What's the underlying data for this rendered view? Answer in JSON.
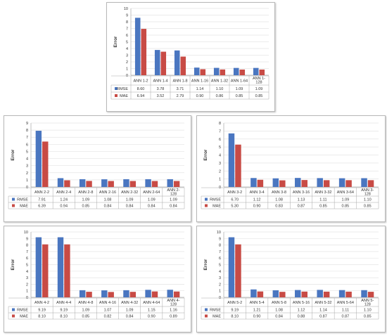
{
  "figure_type": "grouped bar charts with data tables",
  "colors": {
    "rmse": "#4a76c0",
    "mae": "#c84b45",
    "grid": "#e4e4e4",
    "axis": "#a8a8a8",
    "panel_border": "#b8b8b8"
  },
  "chart_data": [
    {
      "type": "bar",
      "ylabel": "Error",
      "ylim": [
        0,
        10
      ],
      "yticks": [
        "0",
        "1",
        "2",
        "3",
        "4",
        "5",
        "6",
        "7",
        "8",
        "9",
        "10"
      ],
      "categories": [
        "ANN 1-2",
        "ANN 1-4",
        "ANN 1-8",
        "ANN 1-16",
        "ANN 1-32",
        "ANN 1-64",
        "ANN 1-128"
      ],
      "category_lines": [
        [
          "ANN 1-2"
        ],
        [
          "ANN 1-4"
        ],
        [
          "ANN 1-8"
        ],
        [
          "ANN 1-16"
        ],
        [
          "ANN 1-32"
        ],
        [
          "ANN 1-64"
        ],
        [
          "ANN 1-",
          "128"
        ]
      ],
      "series": [
        {
          "name": "RMSE",
          "values": [
            8.6,
            3.78,
            3.71,
            1.14,
            1.1,
            1.09,
            1.09
          ],
          "labels": [
            "8.60",
            "3.78",
            "3.71",
            "1.14",
            "1.10",
            "1.09",
            "1.09"
          ]
        },
        {
          "name": "MAE",
          "values": [
            6.94,
            3.52,
            2.79,
            0.9,
            0.86,
            0.85,
            0.85
          ],
          "labels": [
            "6.94",
            "3.52",
            "2.79",
            "0.90",
            "0.86",
            "0.85",
            "0.85"
          ]
        }
      ],
      "legend": "data table below chart",
      "grid": true
    },
    {
      "type": "bar",
      "ylabel": "Error",
      "ylim": [
        0,
        9
      ],
      "yticks": [
        "0",
        "1",
        "2",
        "3",
        "4",
        "5",
        "6",
        "7",
        "8",
        "9"
      ],
      "categories": [
        "ANN 2-2",
        "ANN 2-4",
        "ANN 2-8",
        "ANN 2-16",
        "ANN 2-32",
        "ANN 2-64",
        "ANN 2-128"
      ],
      "category_lines": [
        [
          "ANN 2-2"
        ],
        [
          "ANN 2-4"
        ],
        [
          "ANN 2-8"
        ],
        [
          "ANN 2-16"
        ],
        [
          "ANN 2-32"
        ],
        [
          "ANN 2-64"
        ],
        [
          "ANN 2-",
          "128"
        ]
      ],
      "series": [
        {
          "name": "RMSE",
          "values": [
            7.91,
            1.24,
            1.09,
            1.08,
            1.09,
            1.09,
            1.09
          ],
          "labels": [
            "7.91",
            "1.24",
            "1.09",
            "1.08",
            "1.09",
            "1.09",
            "1.09"
          ]
        },
        {
          "name": "MAE",
          "values": [
            6.39,
            0.94,
            0.85,
            0.84,
            0.84,
            0.84,
            0.84
          ],
          "labels": [
            "6.39",
            "0.94",
            "0.85",
            "0.84",
            "0.84",
            "0.84",
            "0.84"
          ]
        }
      ],
      "legend": "data table below chart",
      "grid": true
    },
    {
      "type": "bar",
      "ylabel": "Error",
      "ylim": [
        0,
        8
      ],
      "yticks": [
        "0",
        "1",
        "2",
        "3",
        "4",
        "5",
        "6",
        "7",
        "8"
      ],
      "categories": [
        "ANN 3-2",
        "ANN 3-4",
        "ANN 3-8",
        "ANN 3-16",
        "ANN 3-32",
        "ANN 3-64",
        "ANN 3-128"
      ],
      "category_lines": [
        [
          "ANN 3-2"
        ],
        [
          "ANN 3-4"
        ],
        [
          "ANN 3-8"
        ],
        [
          "ANN 3-16"
        ],
        [
          "ANN 3-32"
        ],
        [
          "ANN 3-64"
        ],
        [
          "ANN 3-",
          "128"
        ]
      ],
      "series": [
        {
          "name": "RMSE",
          "values": [
            6.7,
            1.12,
            1.08,
            1.13,
            1.11,
            1.09,
            1.1
          ],
          "labels": [
            "6.70",
            "1.12",
            "1.08",
            "1.13",
            "1.11",
            "1.09",
            "1.10"
          ]
        },
        {
          "name": "MAE",
          "values": [
            5.3,
            0.9,
            0.83,
            0.87,
            0.85,
            0.85,
            0.85
          ],
          "labels": [
            "5.30",
            "0.90",
            "0.83",
            "0.87",
            "0.85",
            "0.85",
            "0.85"
          ]
        }
      ],
      "legend": "data table below chart",
      "grid": true
    },
    {
      "type": "bar",
      "ylabel": "Error",
      "ylim": [
        0,
        10
      ],
      "yticks": [
        "0",
        "1",
        "2",
        "3",
        "4",
        "5",
        "6",
        "7",
        "8",
        "9",
        "10"
      ],
      "categories": [
        "ANN 4-2",
        "ANN 4-4",
        "ANN 4-8",
        "ANN 4-16",
        "ANN 4-32",
        "ANN 4-64",
        "ANN 4-128"
      ],
      "category_lines": [
        [
          "ANN 4-2"
        ],
        [
          "ANN 4-4"
        ],
        [
          "ANN 4-8"
        ],
        [
          "ANN 4-16"
        ],
        [
          "ANN 4-32"
        ],
        [
          "ANN 4-64"
        ],
        [
          "ANN 4-",
          "128"
        ]
      ],
      "series": [
        {
          "name": "RMSE",
          "values": [
            9.19,
            9.19,
            1.09,
            1.07,
            1.09,
            1.15,
            1.16
          ],
          "labels": [
            "9.19",
            "9.19",
            "1.09",
            "1.07",
            "1.09",
            "1.15",
            "1.16"
          ]
        },
        {
          "name": "MAE",
          "values": [
            8.1,
            8.1,
            0.85,
            0.82,
            0.84,
            0.9,
            0.89
          ],
          "labels": [
            "8.10",
            "8.10",
            "0.85",
            "0.82",
            "0.84",
            "0.90",
            "0.89"
          ]
        }
      ],
      "legend": "data table below chart",
      "grid": true
    },
    {
      "type": "bar",
      "ylabel": "Error",
      "ylim": [
        0,
        10
      ],
      "yticks": [
        "0",
        "1",
        "2",
        "3",
        "4",
        "5",
        "6",
        "7",
        "8",
        "9",
        "10"
      ],
      "categories": [
        "ANN 5-2",
        "ANN 5-4",
        "ANN 5-8",
        "ANN 5-16",
        "ANN 5-32",
        "ANN 5-64",
        "ANN 5-128"
      ],
      "category_lines": [
        [
          "ANN 5-2"
        ],
        [
          "ANN 5-4"
        ],
        [
          "ANN 5-8"
        ],
        [
          "ANN 5-16"
        ],
        [
          "ANN 5-32"
        ],
        [
          "ANN 5-64"
        ],
        [
          "ANN 5-",
          "128"
        ]
      ],
      "series": [
        {
          "name": "RMSE",
          "values": [
            9.19,
            1.21,
            1.08,
            1.12,
            1.14,
            1.11,
            1.1
          ],
          "labels": [
            "9.19",
            "1.21",
            "1.08",
            "1.12",
            "1.14",
            "1.11",
            "1.10"
          ]
        },
        {
          "name": "MAE",
          "values": [
            8.1,
            0.9,
            0.84,
            0.88,
            0.87,
            0.87,
            0.85
          ],
          "labels": [
            "8.10",
            "0.90",
            "0.84",
            "0.88",
            "0.87",
            "0.87",
            "0.85"
          ]
        }
      ],
      "legend": "data table below chart",
      "grid": true
    }
  ]
}
